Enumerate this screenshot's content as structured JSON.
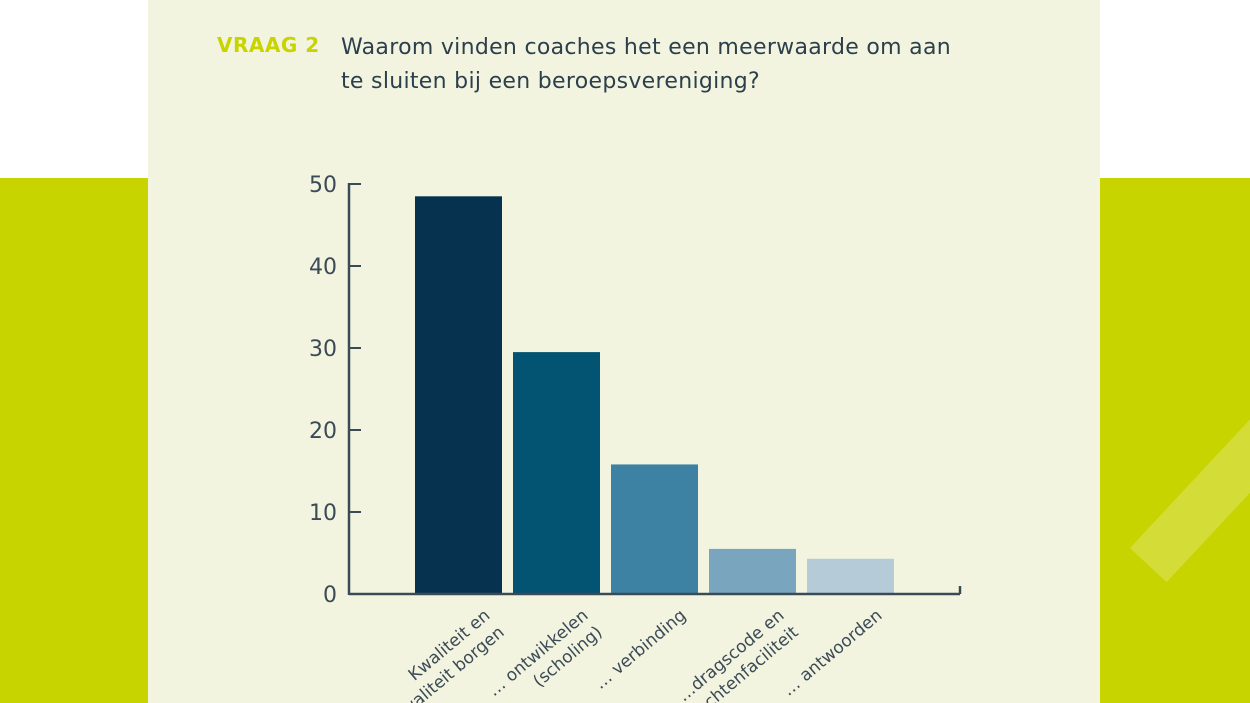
{
  "question": {
    "tag": "VRAAG 2",
    "line1": "Waarom vinden coaches het een meerwaarde om aan",
    "line2": "te sluiten bij een beroepsvereniging?"
  },
  "colors": {
    "page": "#ffffff",
    "panel": "#f3f4df",
    "accent_green": "#c8d400",
    "text": "#2b3f4c",
    "axis": "#3b4a57"
  },
  "chart_data": {
    "type": "bar",
    "title": "Waarom vinden coaches het een meerwaarde om aan te sluiten bij een beroepsvereniging?",
    "xlabel": "",
    "ylabel": "",
    "ylim": [
      0,
      50
    ],
    "yticks": [
      0,
      10,
      20,
      30,
      40,
      50
    ],
    "grid": false,
    "categories": [
      [
        "Kwaliteit en",
        "kwaliteit borgen"
      ],
      [
        "… ontwikkelen",
        "(scholing)"
      ],
      [
        "… verbinding"
      ],
      [
        "…dragscode en",
        "…chtenfaciliteit"
      ],
      [
        "… antwoorden"
      ]
    ],
    "values": [
      48.5,
      29.5,
      15.8,
      5.5,
      4.3
    ],
    "bar_colors": [
      "#06324f",
      "#035473",
      "#3d82a2",
      "#7aa5bf",
      "#b6cbd8"
    ]
  }
}
